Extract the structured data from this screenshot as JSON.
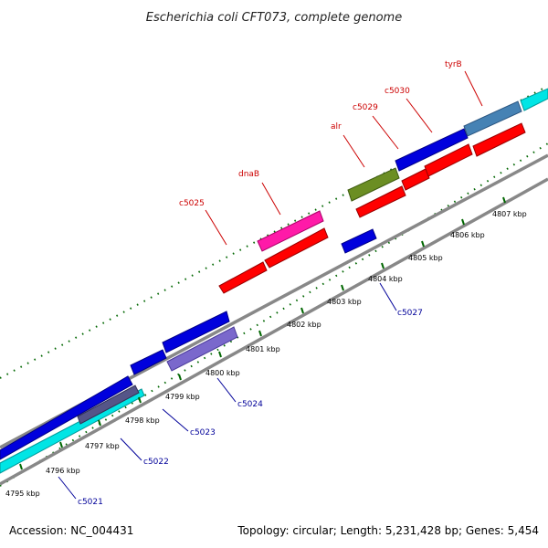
{
  "title": "Escherichia coli CFT073, complete genome",
  "footer": {
    "accession": "Accession: NC_004431",
    "topology": "Topology: circular; Length: 5,231,428 bp; Genes: 5,454"
  },
  "colors": {
    "background": "#ffffff",
    "label_top": "#cc0000",
    "label_bottom": "#000099",
    "tick": "#006600",
    "backbone": "#888888"
  },
  "ticks": [
    {
      "label": "4795 kbp"
    },
    {
      "label": "4796 kbp"
    },
    {
      "label": "4797 kbp"
    },
    {
      "label": "4798 kbp"
    },
    {
      "label": "4799 kbp"
    },
    {
      "label": "4800 kbp"
    },
    {
      "label": "4801 kbp"
    },
    {
      "label": "4802 kbp"
    },
    {
      "label": "4803 kbp"
    },
    {
      "label": "4804 kbp"
    },
    {
      "label": "4805 kbp"
    },
    {
      "label": "4806 kbp"
    },
    {
      "label": "4807 kbp"
    }
  ],
  "gene_labels_top": [
    {
      "label": "c5025"
    },
    {
      "label": "dnaB"
    },
    {
      "label": "alr"
    },
    {
      "label": "c5029"
    },
    {
      "label": "c5030"
    },
    {
      "label": "tyrB"
    }
  ],
  "gene_labels_bottom": [
    {
      "label": "c5021"
    },
    {
      "label": "c5022"
    },
    {
      "label": "c5023"
    },
    {
      "label": "c5024"
    },
    {
      "label": "c5027"
    }
  ]
}
